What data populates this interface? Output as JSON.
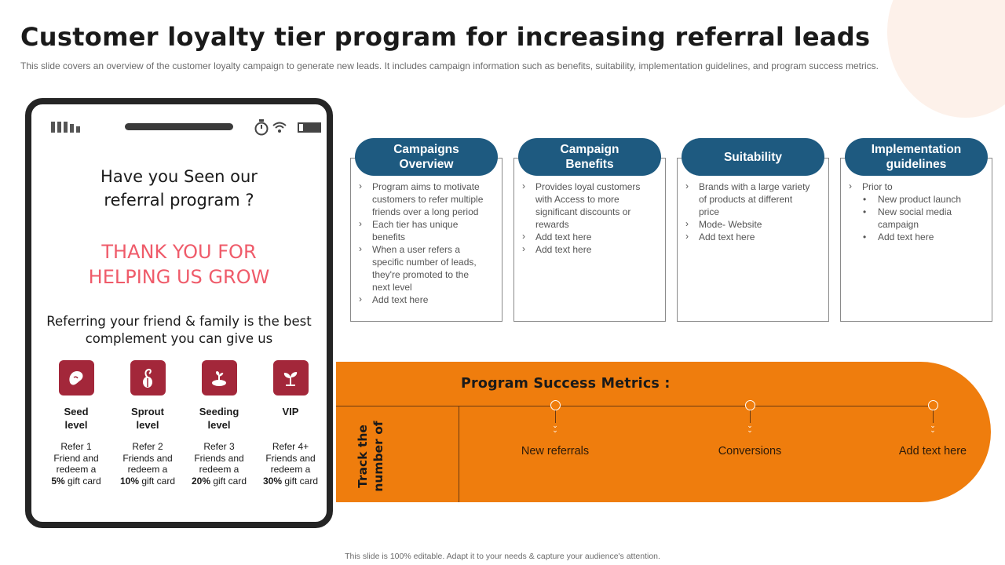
{
  "slide": {
    "title": "Customer loyalty tier program for increasing referral leads",
    "subtitle": "This slide covers an overview of the customer loyalty campaign to generate new leads. It includes campaign information such as benefits, suitability, implementation guidelines, and program success metrics.",
    "footer": "This slide is 100% editable.  Adapt it to your needs & capture your audience's attention."
  },
  "phone": {
    "heading_line1": "Have you Seen our",
    "heading_line2": "referral program ?",
    "thanks_line1": "THANK YOU FOR",
    "thanks_line2": "HELPING US GROW",
    "referral_line1": "Referring your friend & family is the best",
    "referral_line2": "complement you can give us",
    "tiers": [
      {
        "name_line1": "Seed",
        "name_line2": "level",
        "icon": "seed-icon",
        "desc_line1": "Refer 1",
        "desc_line2": "Friend and",
        "desc_line3": "redeem a",
        "pct": "5%",
        "desc_end": "gift card"
      },
      {
        "name_line1": "Sprout",
        "name_line2": "level",
        "icon": "sprout-icon",
        "desc_line1": "Refer 2",
        "desc_line2": "Friends and",
        "desc_line3": "redeem a",
        "pct": "10%",
        "desc_end": "gift card"
      },
      {
        "name_line1": "Seeding",
        "name_line2": "level",
        "icon": "seedling-icon",
        "desc_line1": "Refer 3",
        "desc_line2": "Friends and",
        "desc_line3": "redeem a",
        "pct": "20%",
        "desc_end": "gift card"
      },
      {
        "name_line1": "VIP",
        "name_line2": "",
        "icon": "plant-icon",
        "desc_line1": "Refer 4+",
        "desc_line2": "Friends and",
        "desc_line3": "redeem a",
        "pct": "30%",
        "desc_end": "gift card"
      }
    ]
  },
  "cards": [
    {
      "title_line1": "Campaigns",
      "title_line2": "Overview",
      "items": [
        "Program aims to motivate",
        "customers to refer multiple",
        "friends over  a long period",
        "Each tier has unique",
        "benefits",
        "When a user refers a",
        "specific number of leads,",
        "they're promoted to the",
        "next level",
        "Add text here"
      ]
    },
    {
      "title_line1": "Campaign",
      "title_line2": "Benefits",
      "items": [
        "Provides loyal customers",
        "with Access to more",
        "significant discounts or",
        "rewards",
        "Add text here",
        "Add text here"
      ]
    },
    {
      "title_line1": "Suitability",
      "title_line2": "",
      "items": [
        "Brands with a large variety",
        "of products at different",
        "price",
        "Mode- Website",
        "Add text here"
      ]
    },
    {
      "title_line1": "Implementation",
      "title_line2": "guidelines",
      "items": [
        "Prior to",
        "New product launch",
        "New social media",
        "campaign",
        "Add text here"
      ]
    }
  ],
  "metrics": {
    "title": "Program Success Metrics :",
    "track_line1": "Track the",
    "track_line2": "number of",
    "items": [
      "New referrals",
      "Conversions",
      "Add text here"
    ]
  },
  "colors": {
    "accent_blue": "#1e5a80",
    "accent_orange": "#ef7d0d",
    "tier_red": "#a3273a",
    "thanks_pink": "#ef5b6a"
  }
}
